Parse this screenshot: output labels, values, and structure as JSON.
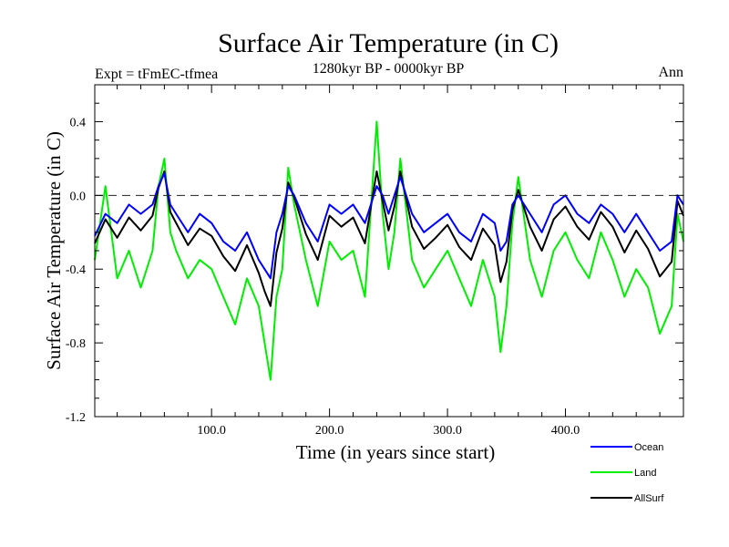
{
  "chart_data": {
    "type": "line",
    "title": "Surface Air Temperature (in C)",
    "subtitle_left": "Expt = tFmEC-tfmea",
    "subtitle_center": "1280kyr BP - 0000kyr BP",
    "subtitle_right": "Ann",
    "xlabel": "Time (in years since start)",
    "ylabel": "Surface Air Temperature (in C)",
    "xlim": [
      1,
      500
    ],
    "ylim": [
      -1.2,
      0.6
    ],
    "xticks": [
      {
        "value": 100,
        "label": "100.0"
      },
      {
        "value": 200,
        "label": "200.0"
      },
      {
        "value": 300,
        "label": "300.0"
      },
      {
        "value": 400,
        "label": "400.0"
      }
    ],
    "yticks": [
      {
        "value": 0.4,
        "label": "0.4"
      },
      {
        "value": 0.0,
        "label": "0.0"
      },
      {
        "value": -0.4,
        "label": "-0.4"
      },
      {
        "value": -0.8,
        "label": "-0.8"
      },
      {
        "value": -1.2,
        "label": "-1.2"
      }
    ],
    "reference_line": {
      "y": 0.0,
      "style": "dashed"
    },
    "series": [
      {
        "name": "Ocean",
        "color": "#0000ff",
        "x": [
          1,
          10,
          20,
          30,
          40,
          50,
          55,
          60,
          65,
          70,
          80,
          90,
          100,
          110,
          120,
          130,
          140,
          145,
          150,
          155,
          160,
          165,
          170,
          180,
          190,
          200,
          210,
          220,
          230,
          240,
          245,
          250,
          255,
          260,
          270,
          280,
          290,
          300,
          310,
          320,
          330,
          340,
          345,
          350,
          355,
          360,
          370,
          380,
          390,
          400,
          410,
          420,
          430,
          440,
          450,
          460,
          470,
          480,
          490,
          495,
          500
        ],
        "values": [
          -0.22,
          -0.1,
          -0.15,
          -0.05,
          -0.1,
          -0.05,
          0.05,
          0.12,
          -0.05,
          -0.1,
          -0.2,
          -0.1,
          -0.15,
          -0.25,
          -0.3,
          -0.2,
          -0.35,
          -0.4,
          -0.45,
          -0.2,
          -0.1,
          0.05,
          0.0,
          -0.15,
          -0.25,
          -0.05,
          -0.1,
          -0.05,
          -0.15,
          0.05,
          0.0,
          -0.1,
          0.0,
          0.1,
          -0.1,
          -0.2,
          -0.15,
          -0.1,
          -0.2,
          -0.25,
          -0.1,
          -0.15,
          -0.3,
          -0.25,
          -0.05,
          0.0,
          -0.1,
          -0.2,
          -0.05,
          0.0,
          -0.1,
          -0.15,
          -0.05,
          -0.1,
          -0.2,
          -0.1,
          -0.2,
          -0.3,
          -0.25,
          0.0,
          -0.05
        ]
      },
      {
        "name": "Land",
        "color": "#00ee00",
        "x": [
          1,
          10,
          20,
          30,
          40,
          50,
          55,
          60,
          65,
          70,
          80,
          90,
          100,
          110,
          120,
          130,
          140,
          145,
          150,
          155,
          160,
          165,
          170,
          180,
          190,
          200,
          210,
          220,
          230,
          240,
          245,
          250,
          255,
          260,
          270,
          280,
          290,
          300,
          310,
          320,
          330,
          340,
          345,
          350,
          355,
          360,
          370,
          380,
          390,
          400,
          410,
          420,
          430,
          440,
          450,
          460,
          470,
          480,
          490,
          495,
          500
        ],
        "values": [
          -0.35,
          0.05,
          -0.45,
          -0.3,
          -0.5,
          -0.3,
          0.05,
          0.2,
          -0.2,
          -0.3,
          -0.45,
          -0.35,
          -0.4,
          -0.55,
          -0.7,
          -0.45,
          -0.6,
          -0.8,
          -1.0,
          -0.55,
          -0.4,
          0.15,
          -0.05,
          -0.35,
          -0.6,
          -0.25,
          -0.35,
          -0.3,
          -0.55,
          0.4,
          -0.1,
          -0.4,
          -0.2,
          0.2,
          -0.35,
          -0.5,
          -0.4,
          -0.3,
          -0.45,
          -0.6,
          -0.35,
          -0.55,
          -0.85,
          -0.6,
          -0.15,
          0.1,
          -0.35,
          -0.55,
          -0.3,
          -0.2,
          -0.35,
          -0.45,
          -0.2,
          -0.35,
          -0.55,
          -0.4,
          -0.5,
          -0.75,
          -0.6,
          -0.1,
          -0.25
        ]
      },
      {
        "name": "AllSurf",
        "color": "#000000",
        "x": [
          1,
          10,
          20,
          30,
          40,
          50,
          55,
          60,
          65,
          70,
          80,
          90,
          100,
          110,
          120,
          130,
          140,
          145,
          150,
          155,
          160,
          165,
          170,
          180,
          190,
          200,
          210,
          220,
          230,
          240,
          245,
          250,
          255,
          260,
          270,
          280,
          290,
          300,
          310,
          320,
          330,
          340,
          345,
          350,
          355,
          360,
          370,
          380,
          390,
          400,
          410,
          420,
          430,
          440,
          450,
          460,
          470,
          480,
          490,
          495,
          500
        ],
        "values": [
          -0.26,
          -0.13,
          -0.23,
          -0.12,
          -0.19,
          -0.11,
          0.04,
          0.13,
          -0.09,
          -0.15,
          -0.27,
          -0.18,
          -0.22,
          -0.33,
          -0.41,
          -0.27,
          -0.42,
          -0.52,
          -0.6,
          -0.31,
          -0.18,
          0.07,
          -0.01,
          -0.21,
          -0.35,
          -0.11,
          -0.17,
          -0.12,
          -0.26,
          0.13,
          -0.03,
          -0.19,
          -0.06,
          0.13,
          -0.17,
          -0.29,
          -0.23,
          -0.16,
          -0.28,
          -0.35,
          -0.18,
          -0.27,
          -0.47,
          -0.36,
          -0.08,
          0.03,
          -0.17,
          -0.3,
          -0.13,
          -0.06,
          -0.17,
          -0.24,
          -0.09,
          -0.17,
          -0.31,
          -0.19,
          -0.29,
          -0.44,
          -0.36,
          -0.03,
          -0.11
        ]
      }
    ],
    "legend_placement": "bottom-right"
  }
}
